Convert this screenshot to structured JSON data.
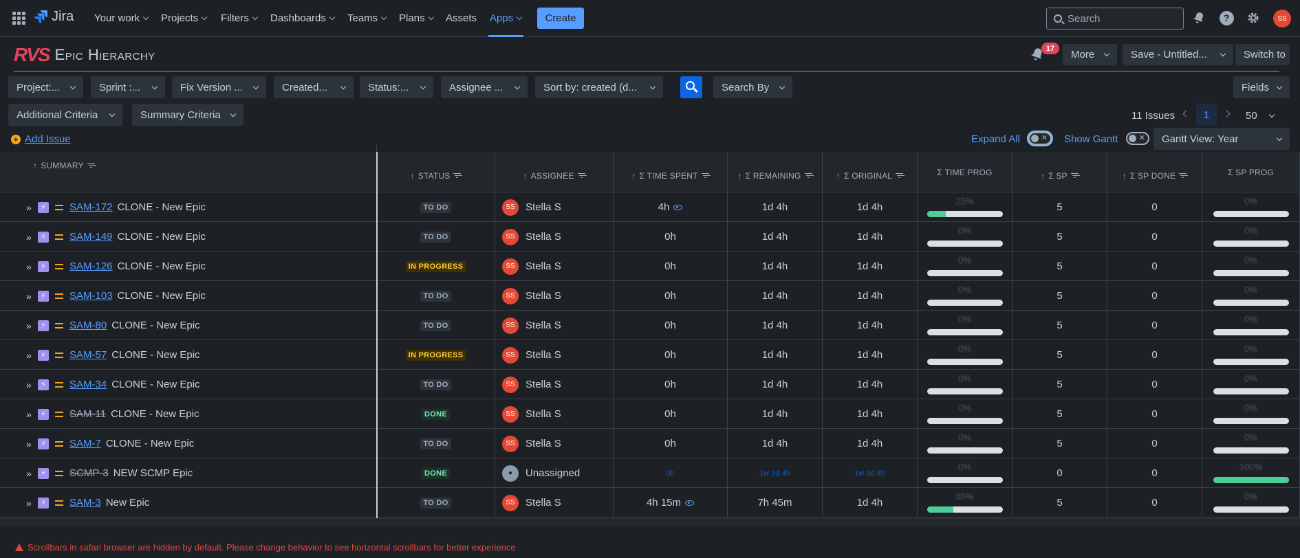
{
  "topnav": {
    "brand": "Jira",
    "items": [
      "Your work",
      "Projects",
      "Filters",
      "Dashboards",
      "Teams",
      "Plans",
      "Assets",
      "Apps"
    ],
    "create_label": "Create",
    "search_placeholder": "Search",
    "avatar_initials": "SS",
    "accent": "#579dff"
  },
  "app": {
    "logo": "RVS",
    "title": "Epic Hierarchy",
    "notification_count": "17",
    "more_label": "More",
    "save_label": "Save - Untitled...",
    "switch_label": "Switch to"
  },
  "filters": {
    "project": "Project:...",
    "sprint": "Sprint :...",
    "fix_version": "Fix Version ...",
    "created": "Created...",
    "status": "Status:...",
    "assignee": "Assignee ...",
    "sort": "Sort by: created (d...",
    "search_by": "Search By",
    "fields": "Fields",
    "additional": "Additional Criteria",
    "summary": "Summary Criteria"
  },
  "pager": {
    "count": "11 Issues",
    "page": "1",
    "page_size": "50"
  },
  "actions": {
    "add_issue": "Add Issue",
    "expand_all": "Expand All",
    "show_gantt": "Show Gantt",
    "gantt_view": "Gantt View: Year"
  },
  "columns": {
    "summary": "SUMMARY",
    "status": "STATUS",
    "assignee": "ASSIGNEE",
    "time_spent": "Σ TIME SPENT",
    "remaining": "Σ REMAINING",
    "original": "Σ ORIGINAL",
    "time_prog": "Σ TIME PROG",
    "sp": "Σ SP",
    "sp_done": "Σ SP DONE",
    "sp_prog": "Σ SP PROG"
  },
  "rows": [
    {
      "key": "SAM-172",
      "summary": "CLONE - New Epic",
      "status": "TO DO",
      "status_type": "todo",
      "assignee": "Stella S",
      "time_spent": "4h",
      "watch": true,
      "remaining": "1d 4h",
      "original": "1d 4h",
      "time_prog": "25%",
      "time_prog_value": 25,
      "sp": "5",
      "sp_done": "0",
      "sp_prog": "0%",
      "sp_prog_value": 0
    },
    {
      "key": "SAM-149",
      "summary": "CLONE - New Epic",
      "status": "TO DO",
      "status_type": "todo",
      "assignee": "Stella S",
      "time_spent": "0h",
      "watch": false,
      "remaining": "1d 4h",
      "original": "1d 4h",
      "time_prog": "0%",
      "time_prog_value": 0,
      "sp": "5",
      "sp_done": "0",
      "sp_prog": "0%",
      "sp_prog_value": 0
    },
    {
      "key": "SAM-126",
      "summary": "CLONE - New Epic",
      "status": "IN PROGRESS",
      "status_type": "prog",
      "assignee": "Stella S",
      "time_spent": "0h",
      "watch": false,
      "remaining": "1d 4h",
      "original": "1d 4h",
      "time_prog": "0%",
      "time_prog_value": 0,
      "sp": "5",
      "sp_done": "0",
      "sp_prog": "0%",
      "sp_prog_value": 0
    },
    {
      "key": "SAM-103",
      "summary": "CLONE - New Epic",
      "status": "TO DO",
      "status_type": "todo",
      "assignee": "Stella S",
      "time_spent": "0h",
      "watch": false,
      "remaining": "1d 4h",
      "original": "1d 4h",
      "time_prog": "0%",
      "time_prog_value": 0,
      "sp": "5",
      "sp_done": "0",
      "sp_prog": "0%",
      "sp_prog_value": 0
    },
    {
      "key": "SAM-80",
      "summary": "CLONE - New Epic",
      "status": "TO DO",
      "status_type": "todo",
      "assignee": "Stella S",
      "time_spent": "0h",
      "watch": false,
      "remaining": "1d 4h",
      "original": "1d 4h",
      "time_prog": "0%",
      "time_prog_value": 0,
      "sp": "5",
      "sp_done": "0",
      "sp_prog": "0%",
      "sp_prog_value": 0
    },
    {
      "key": "SAM-57",
      "summary": "CLONE - New Epic",
      "status": "IN PROGRESS",
      "status_type": "prog",
      "assignee": "Stella S",
      "time_spent": "0h",
      "watch": false,
      "remaining": "1d 4h",
      "original": "1d 4h",
      "time_prog": "0%",
      "time_prog_value": 0,
      "sp": "5",
      "sp_done": "0",
      "sp_prog": "0%",
      "sp_prog_value": 0
    },
    {
      "key": "SAM-34",
      "summary": "CLONE - New Epic",
      "status": "TO DO",
      "status_type": "todo",
      "assignee": "Stella S",
      "time_spent": "0h",
      "watch": false,
      "remaining": "1d 4h",
      "original": "1d 4h",
      "time_prog": "0%",
      "time_prog_value": 0,
      "sp": "5",
      "sp_done": "0",
      "sp_prog": "0%",
      "sp_prog_value": 0
    },
    {
      "key": "SAM-11",
      "summary": "CLONE - New Epic",
      "status": "DONE",
      "status_type": "done",
      "assignee": "Stella S",
      "time_spent": "0h",
      "watch": false,
      "remaining": "1d 4h",
      "original": "1d 4h",
      "time_prog": "0%",
      "time_prog_value": 0,
      "sp": "5",
      "sp_done": "0",
      "sp_prog": "0%",
      "sp_prog_value": 0
    },
    {
      "key": "SAM-7",
      "summary": "CLONE - New Epic",
      "status": "TO DO",
      "status_type": "todo",
      "assignee": "Stella S",
      "time_spent": "0h",
      "watch": false,
      "remaining": "1d 4h",
      "original": "1d 4h",
      "time_prog": "0%",
      "time_prog_value": 0,
      "sp": "5",
      "sp_done": "0",
      "sp_prog": "0%",
      "sp_prog_value": 0
    },
    {
      "key": "SCMP-3",
      "summary": "NEW SCMP Epic",
      "status": "DONE",
      "status_type": "done",
      "assignee": "Unassigned",
      "time_spent": "0h",
      "watch": false,
      "hidden": true,
      "remaining": "1w 3d 4h",
      "original": "1w 3d 4h",
      "time_prog": "0%",
      "time_prog_value": 0,
      "sp": "0",
      "sp_done": "0",
      "sp_prog": "100%",
      "sp_prog_value": 100
    },
    {
      "key": "SAM-3",
      "summary": "New Epic",
      "status": "TO DO",
      "status_type": "todo",
      "assignee": "Stella S",
      "time_spent": "4h 15m",
      "watch": true,
      "remaining": "7h 45m",
      "original": "1d 4h",
      "time_prog": "35%",
      "time_prog_value": 35,
      "sp": "5",
      "sp_done": "0",
      "sp_prog": "0%",
      "sp_prog_value": 0
    }
  ],
  "warning": "Scrollbars in safari browser are hidden by default. Please change behavior to see horizontal scrollbars for better experience"
}
